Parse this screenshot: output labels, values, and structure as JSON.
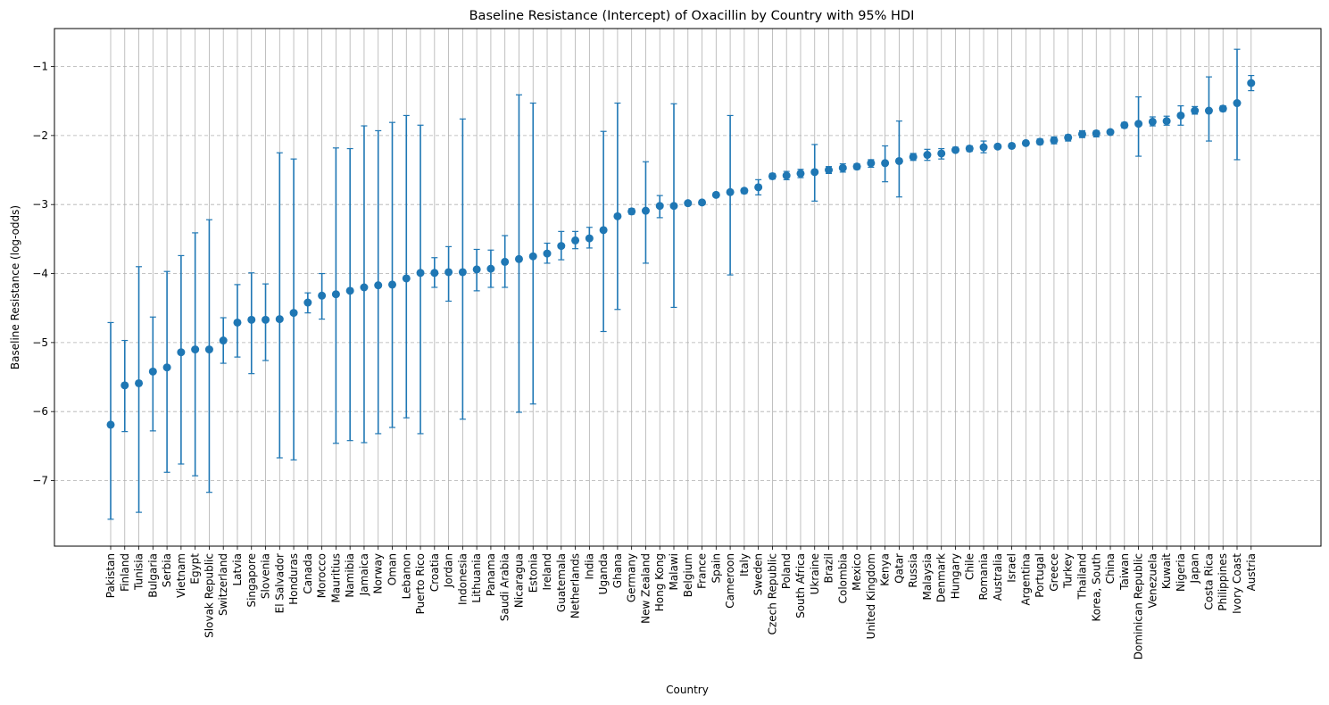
{
  "chart_data": {
    "type": "scatter",
    "title": "Baseline Resistance (Intercept) of Oxacillin by Country with 95% HDI",
    "xlabel": "Country",
    "ylabel": "Baseline Resistance (log-odds)",
    "ylim": [
      -7.95,
      -0.45
    ],
    "yticks": [
      -7,
      -6,
      -5,
      -4,
      -3,
      -2,
      -1
    ],
    "grid": {
      "x": true,
      "y": true,
      "y_style": "dashed"
    },
    "colors": {
      "point": "#1f77b4",
      "grid": "#b0b0b0"
    },
    "series": [
      {
        "name": "",
        "points": [
          {
            "country": "Pakistan",
            "mean": -6.19,
            "lower": -7.56,
            "upper": -4.71
          },
          {
            "country": "Finland",
            "mean": -5.62,
            "lower": -6.29,
            "upper": -4.97
          },
          {
            "country": "Tunisia",
            "mean": -5.59,
            "lower": -7.46,
            "upper": -3.9
          },
          {
            "country": "Bulgaria",
            "mean": -5.42,
            "lower": -6.28,
            "upper": -4.63
          },
          {
            "country": "Serbia",
            "mean": -5.36,
            "lower": -6.88,
            "upper": -3.97
          },
          {
            "country": "Vietnam",
            "mean": -5.14,
            "lower": -6.76,
            "upper": -3.74
          },
          {
            "country": "Egypt",
            "mean": -5.1,
            "lower": -6.93,
            "upper": -3.41
          },
          {
            "country": "Slovak Republic",
            "mean": -5.1,
            "lower": -7.17,
            "upper": -3.22
          },
          {
            "country": "Switzerland",
            "mean": -4.97,
            "lower": -5.3,
            "upper": -4.64
          },
          {
            "country": "Latvia",
            "mean": -4.71,
            "lower": -5.21,
            "upper": -4.16
          },
          {
            "country": "Singapore",
            "mean": -4.67,
            "lower": -5.45,
            "upper": -3.99
          },
          {
            "country": "Slovenia",
            "mean": -4.67,
            "lower": -5.26,
            "upper": -4.15
          },
          {
            "country": "El Salvador",
            "mean": -4.66,
            "lower": -6.67,
            "upper": -2.25
          },
          {
            "country": "Honduras",
            "mean": -4.57,
            "lower": -6.7,
            "upper": -2.34
          },
          {
            "country": "Canada",
            "mean": -4.42,
            "lower": -4.57,
            "upper": -4.28
          },
          {
            "country": "Morocco",
            "mean": -4.32,
            "lower": -4.66,
            "upper": -4.0
          },
          {
            "country": "Mauritius",
            "mean": -4.3,
            "lower": -6.46,
            "upper": -2.18
          },
          {
            "country": "Namibia",
            "mean": -4.25,
            "lower": -6.42,
            "upper": -2.19
          },
          {
            "country": "Jamaica",
            "mean": -4.2,
            "lower": -6.45,
            "upper": -1.86
          },
          {
            "country": "Norway",
            "mean": -4.17,
            "lower": -6.32,
            "upper": -1.93
          },
          {
            "country": "Oman",
            "mean": -4.16,
            "lower": -6.23,
            "upper": -1.81
          },
          {
            "country": "Lebanon",
            "mean": -4.07,
            "lower": -6.09,
            "upper": -1.71
          },
          {
            "country": "Puerto Rico",
            "mean": -3.99,
            "lower": -6.32,
            "upper": -1.85
          },
          {
            "country": "Croatia",
            "mean": -3.99,
            "lower": -4.2,
            "upper": -3.77
          },
          {
            "country": "Jordan",
            "mean": -3.98,
            "lower": -4.4,
            "upper": -3.61
          },
          {
            "country": "Indonesia",
            "mean": -3.98,
            "lower": -6.11,
            "upper": -1.76
          },
          {
            "country": "Lithuania",
            "mean": -3.94,
            "lower": -4.25,
            "upper": -3.65
          },
          {
            "country": "Panama",
            "mean": -3.93,
            "lower": -4.2,
            "upper": -3.66
          },
          {
            "country": "Saudi Arabia",
            "mean": -3.83,
            "lower": -4.2,
            "upper": -3.45
          },
          {
            "country": "Nicaragua",
            "mean": -3.79,
            "lower": -6.01,
            "upper": -1.41
          },
          {
            "country": "Estonia",
            "mean": -3.75,
            "lower": -5.89,
            "upper": -1.53
          },
          {
            "country": "Ireland",
            "mean": -3.71,
            "lower": -3.85,
            "upper": -3.56
          },
          {
            "country": "Guatemala",
            "mean": -3.6,
            "lower": -3.8,
            "upper": -3.39
          },
          {
            "country": "Netherlands",
            "mean": -3.52,
            "lower": -3.64,
            "upper": -3.39
          },
          {
            "country": "India",
            "mean": -3.49,
            "lower": -3.63,
            "upper": -3.33
          },
          {
            "country": "Uganda",
            "mean": -3.37,
            "lower": -4.84,
            "upper": -1.94
          },
          {
            "country": "Ghana",
            "mean": -3.17,
            "lower": -4.52,
            "upper": -1.53
          },
          {
            "country": "Germany",
            "mean": -3.1,
            "lower": -3.14,
            "upper": -3.06
          },
          {
            "country": "New Zealand",
            "mean": -3.09,
            "lower": -3.85,
            "upper": -2.38
          },
          {
            "country": "Hong Kong",
            "mean": -3.02,
            "lower": -3.19,
            "upper": -2.87
          },
          {
            "country": "Malawi",
            "mean": -3.02,
            "lower": -4.49,
            "upper": -1.54
          },
          {
            "country": "Belgium",
            "mean": -2.98,
            "lower": -3.01,
            "upper": -2.95
          },
          {
            "country": "France",
            "mean": -2.97,
            "lower": -3.0,
            "upper": -2.94
          },
          {
            "country": "Spain",
            "mean": -2.86,
            "lower": -2.89,
            "upper": -2.83
          },
          {
            "country": "Cameroon",
            "mean": -2.82,
            "lower": -4.02,
            "upper": -1.71
          },
          {
            "country": "Italy",
            "mean": -2.8,
            "lower": -2.84,
            "upper": -2.77
          },
          {
            "country": "Sweden",
            "mean": -2.75,
            "lower": -2.86,
            "upper": -2.64
          },
          {
            "country": "Czech Republic",
            "mean": -2.59,
            "lower": -2.63,
            "upper": -2.55
          },
          {
            "country": "Poland",
            "mean": -2.58,
            "lower": -2.64,
            "upper": -2.52
          },
          {
            "country": "South Africa",
            "mean": -2.55,
            "lower": -2.61,
            "upper": -2.49
          },
          {
            "country": "Ukraine",
            "mean": -2.53,
            "lower": -2.95,
            "upper": -2.13
          },
          {
            "country": "Brazil",
            "mean": -2.5,
            "lower": -2.55,
            "upper": -2.45
          },
          {
            "country": "Colombia",
            "mean": -2.47,
            "lower": -2.53,
            "upper": -2.41
          },
          {
            "country": "Mexico",
            "mean": -2.45,
            "lower": -2.49,
            "upper": -2.41
          },
          {
            "country": "United Kingdom",
            "mean": -2.4,
            "lower": -2.46,
            "upper": -2.35
          },
          {
            "country": "Kenya",
            "mean": -2.4,
            "lower": -2.67,
            "upper": -2.15
          },
          {
            "country": "Qatar",
            "mean": -2.37,
            "lower": -2.89,
            "upper": -1.79
          },
          {
            "country": "Russia",
            "mean": -2.31,
            "lower": -2.36,
            "upper": -2.26
          },
          {
            "country": "Malaysia",
            "mean": -2.28,
            "lower": -2.36,
            "upper": -2.2
          },
          {
            "country": "Denmark",
            "mean": -2.26,
            "lower": -2.34,
            "upper": -2.19
          },
          {
            "country": "Hungary",
            "mean": -2.21,
            "lower": -2.24,
            "upper": -2.17
          },
          {
            "country": "Chile",
            "mean": -2.19,
            "lower": -2.23,
            "upper": -2.15
          },
          {
            "country": "Romania",
            "mean": -2.17,
            "lower": -2.25,
            "upper": -2.08
          },
          {
            "country": "Australia",
            "mean": -2.16,
            "lower": -2.19,
            "upper": -2.13
          },
          {
            "country": "Israel",
            "mean": -2.15,
            "lower": -2.18,
            "upper": -2.12
          },
          {
            "country": "Argentina",
            "mean": -2.11,
            "lower": -2.14,
            "upper": -2.08
          },
          {
            "country": "Portugal",
            "mean": -2.09,
            "lower": -2.13,
            "upper": -2.05
          },
          {
            "country": "Greece",
            "mean": -2.07,
            "lower": -2.12,
            "upper": -2.02
          },
          {
            "country": "Turkey",
            "mean": -2.03,
            "lower": -2.08,
            "upper": -1.99
          },
          {
            "country": "Thailand",
            "mean": -1.98,
            "lower": -2.03,
            "upper": -1.93
          },
          {
            "country": "Korea, South",
            "mean": -1.97,
            "lower": -2.02,
            "upper": -1.93
          },
          {
            "country": "China",
            "mean": -1.95,
            "lower": -1.97,
            "upper": -1.92
          },
          {
            "country": "Taiwan",
            "mean": -1.85,
            "lower": -1.89,
            "upper": -1.81
          },
          {
            "country": "Dominican Republic",
            "mean": -1.83,
            "lower": -2.3,
            "upper": -1.44
          },
          {
            "country": "Venezuela",
            "mean": -1.8,
            "lower": -1.86,
            "upper": -1.73
          },
          {
            "country": "Kuwait",
            "mean": -1.79,
            "lower": -1.85,
            "upper": -1.72
          },
          {
            "country": "Nigeria",
            "mean": -1.71,
            "lower": -1.85,
            "upper": -1.57
          },
          {
            "country": "Japan",
            "mean": -1.64,
            "lower": -1.69,
            "upper": -1.58
          },
          {
            "country": "Costa Rica",
            "mean": -1.64,
            "lower": -2.08,
            "upper": -1.15
          },
          {
            "country": "Philippines",
            "mean": -1.61,
            "lower": -1.65,
            "upper": -1.57
          },
          {
            "country": "Ivory Coast",
            "mean": -1.53,
            "lower": -2.35,
            "upper": -0.75
          },
          {
            "country": "Austria",
            "mean": -1.24,
            "lower": -1.35,
            "upper": -1.13
          }
        ]
      }
    ]
  }
}
